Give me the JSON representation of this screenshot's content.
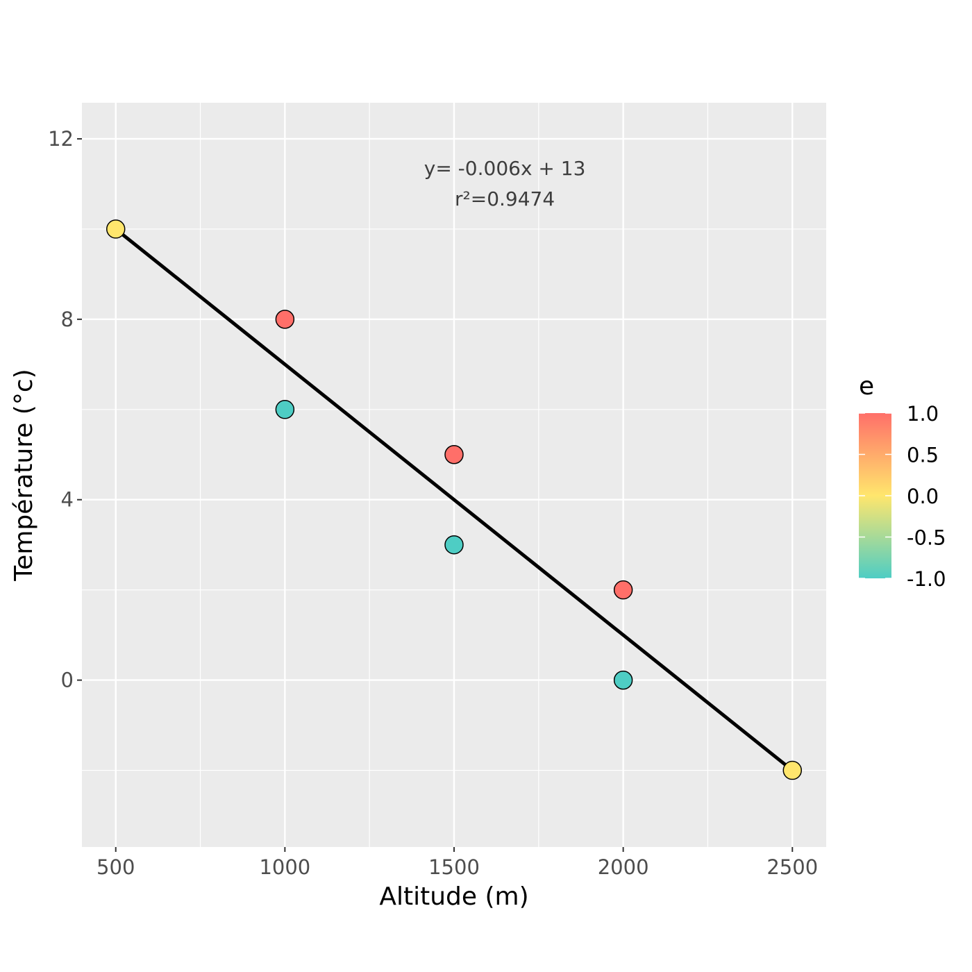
{
  "chart_data": {
    "type": "scatter",
    "xlabel": "Altitude (m)",
    "ylabel": "Température (°c)",
    "xlim": [
      400,
      2600
    ],
    "ylim": [
      -3.7,
      12.8
    ],
    "x_ticks": [
      500,
      1000,
      1500,
      2000,
      2500
    ],
    "x_tick_labels": [
      "500",
      "1000",
      "1500",
      "2000",
      "2500"
    ],
    "x_minor_ticks": [
      750,
      1250,
      1750,
      2250
    ],
    "y_ticks": [
      0,
      4,
      8,
      12
    ],
    "y_tick_labels": [
      "0",
      "4",
      "8",
      "12"
    ],
    "y_minor_ticks": [
      -2,
      2,
      6,
      10
    ],
    "grid": true,
    "points": [
      {
        "x": 500,
        "y": 10,
        "e": 0
      },
      {
        "x": 1000,
        "y": 8,
        "e": 1
      },
      {
        "x": 1000,
        "y": 6,
        "e": -1
      },
      {
        "x": 1500,
        "y": 5,
        "e": 1
      },
      {
        "x": 1500,
        "y": 3,
        "e": -1
      },
      {
        "x": 2000,
        "y": 2,
        "e": 1
      },
      {
        "x": 2000,
        "y": 0,
        "e": -1
      },
      {
        "x": 2500,
        "y": -2,
        "e": 0
      }
    ],
    "fit_line": {
      "slope": -0.006,
      "intercept": 13,
      "x_range": [
        500,
        2500
      ]
    },
    "annotation": {
      "line1": "y= -0.006x + 13",
      "line2": "r²=0.9474",
      "x": 1650,
      "y": 11.2
    },
    "legend": {
      "title": "e",
      "placement": "right",
      "labels": [
        "1.0",
        "0.5",
        "0.0",
        "-0.5",
        "-1.0"
      ],
      "values": [
        1.0,
        0.5,
        0.0,
        -0.5,
        -1.0
      ],
      "colors": {
        "high": "#FF6F69",
        "mid": "#FFE66D",
        "low": "#4ECDC4"
      }
    },
    "colors": {
      "panel": "#EBEBEB",
      "grid": "#FFFFFF",
      "line": "#000000",
      "point_stroke": "#000000"
    }
  }
}
